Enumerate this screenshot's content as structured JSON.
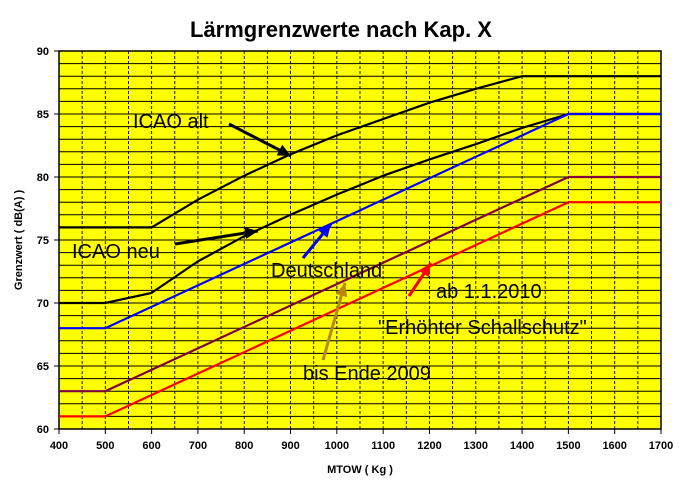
{
  "chart_data": {
    "type": "line",
    "title": "Lärmgrenzwerte nach Kap. X",
    "xlabel": "MTOW ( Kg )",
    "ylabel": "Grenzwert ( dB(A) )",
    "xlim": [
      400,
      1700
    ],
    "ylim": [
      60,
      90
    ],
    "xticks": [
      400,
      500,
      600,
      700,
      800,
      900,
      1000,
      1100,
      1200,
      1300,
      1400,
      1500,
      1600,
      1700
    ],
    "yticks": [
      60,
      65,
      70,
      75,
      80,
      85,
      90
    ],
    "grid": true,
    "plot_background": "#ffff00",
    "series": [
      {
        "name": "ICAO alt",
        "color": "#000000",
        "x": [
          400,
          600,
          700,
          800,
          900,
          1000,
          1100,
          1200,
          1300,
          1400,
          1700
        ],
        "y": [
          76,
          76,
          78.2,
          80.1,
          81.8,
          83.3,
          84.6,
          85.9,
          87,
          88,
          88
        ]
      },
      {
        "name": "ICAO neu",
        "color": "#000000",
        "x": [
          400,
          500,
          600,
          700,
          800,
          900,
          1000,
          1100,
          1200,
          1300,
          1400,
          1500,
          1700
        ],
        "y": [
          70,
          70,
          70.8,
          73.3,
          75.3,
          77,
          78.6,
          80.1,
          81.4,
          82.6,
          83.9,
          85,
          85
        ]
      },
      {
        "name": "Deutschland",
        "color": "#0000ff",
        "x": [
          400,
          500,
          1500,
          1700
        ],
        "y": [
          68,
          68,
          85,
          85
        ]
      },
      {
        "name": "bis Ende 2009",
        "color": "#800040",
        "x": [
          400,
          500,
          1500,
          1700
        ],
        "y": [
          63,
          63,
          80,
          80
        ]
      },
      {
        "name": "Erhöhter Schallschutz",
        "color": "#ff0000",
        "x": [
          400,
          500,
          1500,
          1700
        ],
        "y": [
          61,
          61,
          78,
          78
        ]
      }
    ],
    "annotations": [
      {
        "text": "ICAO alt",
        "color": "#000000"
      },
      {
        "text": "ICAO neu",
        "color": "#000000"
      },
      {
        "text": "Deutschland",
        "color": "#0000ff"
      },
      {
        "text": "bis Ende 2009",
        "color": "#b8860b"
      },
      {
        "text": "ab 1.1.2010",
        "color": "#ff0000"
      },
      {
        "text": "\"Erhöhter Schallschutz\"",
        "color": "#ff0000"
      }
    ]
  }
}
